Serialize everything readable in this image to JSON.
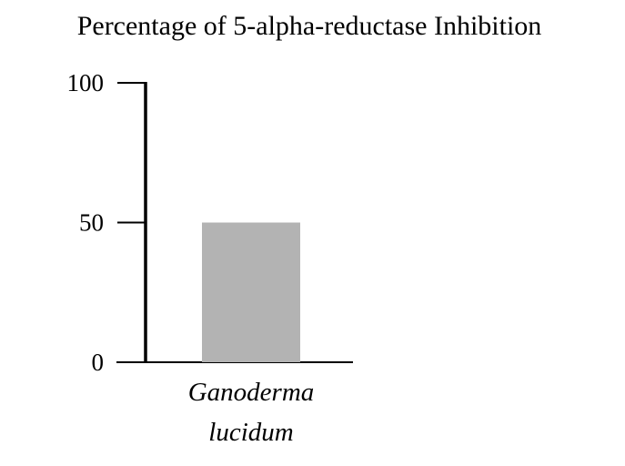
{
  "chart_data": {
    "type": "bar",
    "title": "Percentage of 5-alpha-reductase Inhibition",
    "categories": [
      "Ganoderma lucidum"
    ],
    "values": [
      50
    ],
    "color": "#b3b3b3",
    "ylim": [
      0,
      100
    ],
    "yticks": [
      0,
      50,
      100
    ]
  }
}
